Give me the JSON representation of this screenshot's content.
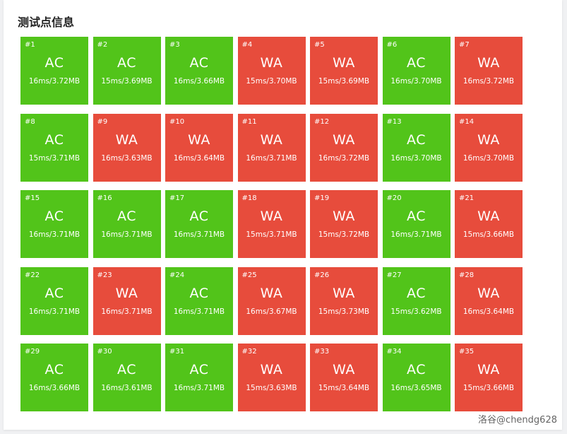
{
  "title": "测试点信息",
  "colors": {
    "AC": "#52c41a",
    "WA": "#e74c3c"
  },
  "cases": [
    {
      "num": "#1",
      "status": "AC",
      "meta": "16ms/3.72MB"
    },
    {
      "num": "#2",
      "status": "AC",
      "meta": "15ms/3.69MB"
    },
    {
      "num": "#3",
      "status": "AC",
      "meta": "16ms/3.66MB"
    },
    {
      "num": "#4",
      "status": "WA",
      "meta": "15ms/3.70MB"
    },
    {
      "num": "#5",
      "status": "WA",
      "meta": "15ms/3.69MB"
    },
    {
      "num": "#6",
      "status": "AC",
      "meta": "16ms/3.70MB"
    },
    {
      "num": "#7",
      "status": "WA",
      "meta": "16ms/3.72MB"
    },
    {
      "num": "#8",
      "status": "AC",
      "meta": "15ms/3.71MB"
    },
    {
      "num": "#9",
      "status": "WA",
      "meta": "16ms/3.63MB"
    },
    {
      "num": "#10",
      "status": "WA",
      "meta": "16ms/3.64MB"
    },
    {
      "num": "#11",
      "status": "WA",
      "meta": "16ms/3.71MB"
    },
    {
      "num": "#12",
      "status": "WA",
      "meta": "16ms/3.72MB"
    },
    {
      "num": "#13",
      "status": "AC",
      "meta": "16ms/3.70MB"
    },
    {
      "num": "#14",
      "status": "WA",
      "meta": "16ms/3.70MB"
    },
    {
      "num": "#15",
      "status": "AC",
      "meta": "16ms/3.71MB"
    },
    {
      "num": "#16",
      "status": "AC",
      "meta": "16ms/3.71MB"
    },
    {
      "num": "#17",
      "status": "AC",
      "meta": "16ms/3.71MB"
    },
    {
      "num": "#18",
      "status": "WA",
      "meta": "15ms/3.71MB"
    },
    {
      "num": "#19",
      "status": "WA",
      "meta": "15ms/3.72MB"
    },
    {
      "num": "#20",
      "status": "AC",
      "meta": "16ms/3.71MB"
    },
    {
      "num": "#21",
      "status": "WA",
      "meta": "15ms/3.66MB"
    },
    {
      "num": "#22",
      "status": "AC",
      "meta": "16ms/3.71MB"
    },
    {
      "num": "#23",
      "status": "WA",
      "meta": "16ms/3.71MB"
    },
    {
      "num": "#24",
      "status": "AC",
      "meta": "16ms/3.71MB"
    },
    {
      "num": "#25",
      "status": "WA",
      "meta": "16ms/3.67MB"
    },
    {
      "num": "#26",
      "status": "WA",
      "meta": "15ms/3.73MB"
    },
    {
      "num": "#27",
      "status": "AC",
      "meta": "15ms/3.62MB"
    },
    {
      "num": "#28",
      "status": "WA",
      "meta": "16ms/3.64MB"
    },
    {
      "num": "#29",
      "status": "AC",
      "meta": "16ms/3.66MB"
    },
    {
      "num": "#30",
      "status": "AC",
      "meta": "16ms/3.61MB"
    },
    {
      "num": "#31",
      "status": "AC",
      "meta": "16ms/3.71MB"
    },
    {
      "num": "#32",
      "status": "WA",
      "meta": "15ms/3.63MB"
    },
    {
      "num": "#33",
      "status": "WA",
      "meta": "15ms/3.64MB"
    },
    {
      "num": "#34",
      "status": "AC",
      "meta": "16ms/3.65MB"
    },
    {
      "num": "#35",
      "status": "WA",
      "meta": "15ms/3.66MB"
    }
  ],
  "watermark": "洛谷@chendg628"
}
